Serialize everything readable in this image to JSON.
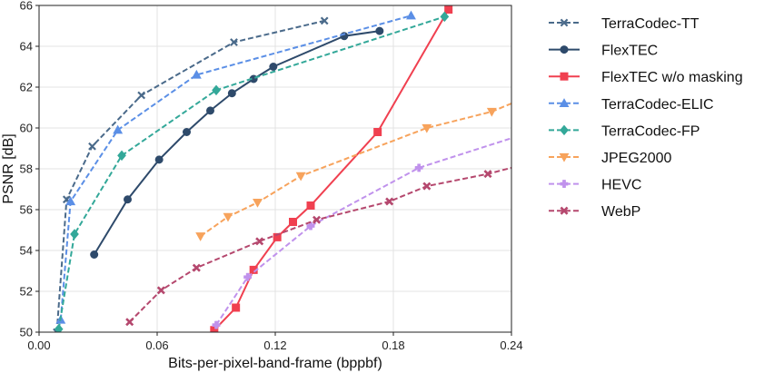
{
  "chart_data": {
    "type": "line",
    "title": "",
    "xlabel": "Bits-per-pixel-band-frame (bppbf)",
    "ylabel": "PSNR [dB]",
    "xlim": [
      0.0,
      0.24
    ],
    "ylim": [
      50,
      66
    ],
    "xticks": [
      0.0,
      0.06,
      0.12,
      0.18,
      0.24
    ],
    "xtick_labels": [
      "0.00",
      "0.06",
      "0.12",
      "0.18",
      "0.24"
    ],
    "yticks": [
      50,
      52,
      54,
      56,
      58,
      60,
      62,
      64,
      66
    ],
    "ytick_labels": [
      "50",
      "52",
      "54",
      "56",
      "58",
      "60",
      "62",
      "64",
      "66"
    ],
    "grid": true,
    "legend_position": "right",
    "series": [
      {
        "name": "TerraCodec-TT",
        "color": "#4a6a8a",
        "line": "dashed",
        "marker": "x",
        "x": [
          0.009,
          0.014,
          0.027,
          0.052,
          0.099,
          0.145
        ],
        "y": [
          50.0,
          56.5,
          59.1,
          61.6,
          64.2,
          65.25
        ]
      },
      {
        "name": "FlexTEC",
        "color": "#2e4a6b",
        "line": "solid",
        "marker": "o",
        "x": [
          0.028,
          0.045,
          0.061,
          0.075,
          0.087,
          0.098,
          0.109,
          0.119,
          0.155,
          0.173
        ],
        "y": [
          53.8,
          56.5,
          58.45,
          59.8,
          60.85,
          61.7,
          62.4,
          63.0,
          64.5,
          64.75
        ]
      },
      {
        "name": "FlexTEC w/o masking",
        "color": "#f04050",
        "line": "solid",
        "marker": "s",
        "x": [
          0.089,
          0.1,
          0.109,
          0.121,
          0.129,
          0.138,
          0.172,
          0.208
        ],
        "y": [
          50.1,
          51.2,
          53.05,
          54.65,
          55.4,
          56.2,
          59.8,
          65.8
        ]
      },
      {
        "name": "TerraCodec-ELIC",
        "color": "#5b8fe6",
        "line": "dashed",
        "marker": "^",
        "x": [
          0.011,
          0.016,
          0.04,
          0.08,
          0.189
        ],
        "y": [
          50.6,
          56.4,
          59.9,
          62.6,
          65.5
        ]
      },
      {
        "name": "TerraCodec-FP",
        "color": "#33a899",
        "line": "dashed",
        "marker": "D",
        "x": [
          0.01,
          0.018,
          0.042,
          0.09,
          0.206
        ],
        "y": [
          50.15,
          54.8,
          58.65,
          61.85,
          65.45
        ]
      },
      {
        "name": "JPEG2000",
        "color": "#f7a35c",
        "line": "dashed",
        "marker": "v",
        "x": [
          0.082,
          0.096,
          0.111,
          0.133,
          0.197,
          0.23,
          0.24
        ],
        "y": [
          54.7,
          55.65,
          56.35,
          57.65,
          60.0,
          60.8,
          61.2
        ]
      },
      {
        "name": "HEVC",
        "color": "#c092ec",
        "line": "dashed",
        "marker": "P",
        "x": [
          0.09,
          0.106,
          0.138,
          0.193,
          0.24
        ],
        "y": [
          50.35,
          52.7,
          55.2,
          58.05,
          59.5
        ]
      },
      {
        "name": "WebP",
        "color": "#b5486e",
        "line": "dashed",
        "marker": "X",
        "x": [
          0.046,
          0.062,
          0.08,
          0.112,
          0.141,
          0.178,
          0.197,
          0.228,
          0.24
        ],
        "y": [
          50.5,
          52.05,
          53.15,
          54.45,
          55.5,
          56.4,
          57.15,
          57.75,
          58.05
        ]
      }
    ]
  }
}
